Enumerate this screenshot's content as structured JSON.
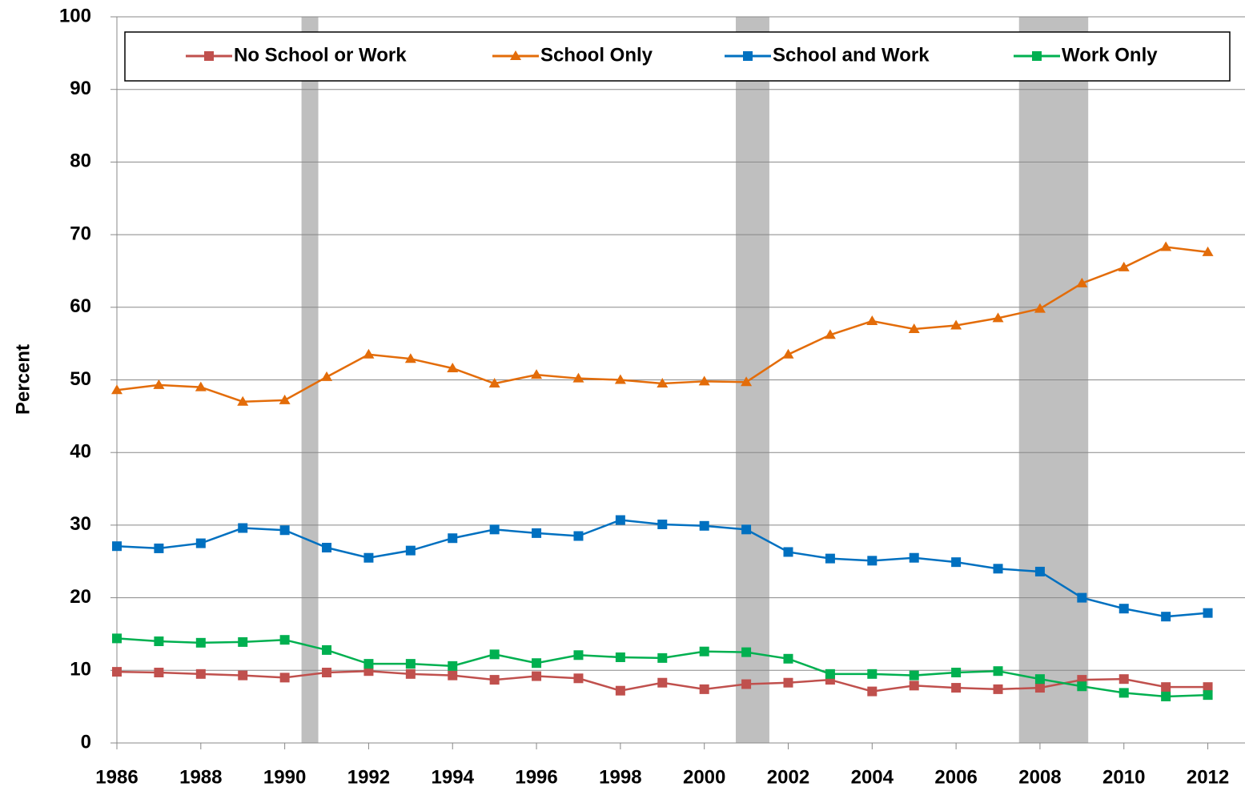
{
  "chart_data": {
    "type": "line",
    "y_label": "Percent",
    "x": [
      1986,
      1987,
      1988,
      1989,
      1990,
      1991,
      1992,
      1993,
      1994,
      1995,
      1996,
      1997,
      1998,
      1999,
      2000,
      2001,
      2002,
      2003,
      2004,
      2005,
      2006,
      2007,
      2008,
      2009,
      2010,
      2011,
      2012
    ],
    "series": [
      {
        "name": "No School or Work",
        "color": "#c0504d",
        "marker": "square",
        "values": [
          9.8,
          9.7,
          9.5,
          9.3,
          9.0,
          9.7,
          9.9,
          9.5,
          9.3,
          8.7,
          9.2,
          8.9,
          7.2,
          8.3,
          7.4,
          8.1,
          8.3,
          8.7,
          7.1,
          7.9,
          7.6,
          7.4,
          7.6,
          8.7,
          8.8,
          7.7,
          7.7
        ]
      },
      {
        "name": "School Only",
        "color": "#e36c09",
        "marker": "triangle",
        "values": [
          48.6,
          49.3,
          49.0,
          47.0,
          47.2,
          50.4,
          53.5,
          52.9,
          51.6,
          49.5,
          50.7,
          50.2,
          50.0,
          49.5,
          49.8,
          49.7,
          53.5,
          56.2,
          58.1,
          57.0,
          57.5,
          58.5,
          59.8,
          63.3,
          65.5,
          68.3,
          67.6
        ]
      },
      {
        "name": "School and Work",
        "color": "#0070c0",
        "marker": "square",
        "values": [
          27.1,
          26.8,
          27.5,
          29.6,
          29.3,
          26.9,
          25.5,
          26.5,
          28.2,
          29.4,
          28.9,
          28.5,
          30.7,
          30.1,
          29.9,
          29.4,
          26.3,
          25.4,
          25.1,
          25.5,
          24.9,
          24.0,
          23.6,
          20.0,
          18.5,
          17.4,
          17.9
        ]
      },
      {
        "name": "Work Only",
        "color": "#00b050",
        "marker": "square",
        "values": [
          14.4,
          14.0,
          13.8,
          13.9,
          14.2,
          12.8,
          10.9,
          10.9,
          10.6,
          12.2,
          11.0,
          12.1,
          11.8,
          11.7,
          12.6,
          12.5,
          11.6,
          9.5,
          9.5,
          9.3,
          9.7,
          9.9,
          8.8,
          7.8,
          6.9,
          6.4,
          6.6
        ]
      }
    ],
    "recessions": [
      [
        1990.4,
        1990.8
      ],
      [
        2000.75,
        2001.55
      ],
      [
        2007.5,
        2009.15
      ]
    ],
    "recession_color": "#bfbfbf",
    "xlim": [
      1986,
      2012.6
    ],
    "xticks": [
      1986,
      1988,
      1990,
      1992,
      1994,
      1996,
      1998,
      2000,
      2002,
      2004,
      2006,
      2008,
      2010,
      2012
    ],
    "ylim": [
      0,
      100
    ],
    "yticks": [
      0,
      10,
      20,
      30,
      40,
      50,
      60,
      70,
      80,
      90,
      100
    ],
    "grid": true,
    "legend": "top"
  }
}
